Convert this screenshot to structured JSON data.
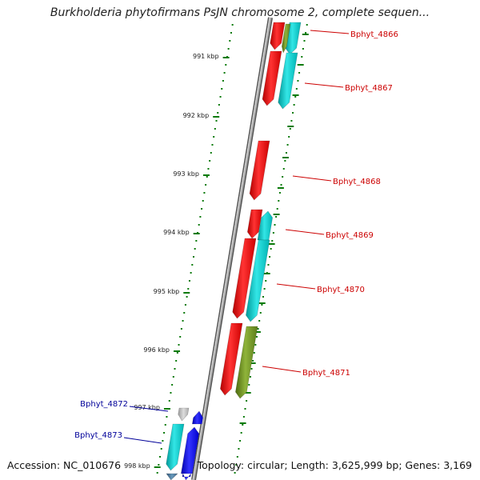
{
  "title": "Burkholderia phytofirmans PsJN chromosome 2, complete sequen...",
  "footer": {
    "accession": "Accession: NC_010676",
    "topology": "Topology: circular; Length: 3,625,999 bp; Genes: 3,169"
  },
  "ticks": [
    "991 kbp",
    "992 kbp",
    "993 kbp",
    "994 kbp",
    "995 kbp",
    "996 kbp",
    "997 kbp",
    "998 kbp"
  ],
  "genes_right": [
    "Bphyt_4866",
    "Bphyt_4867",
    "Bphyt_4868",
    "Bphyt_4869",
    "Bphyt_4870",
    "Bphyt_4871"
  ],
  "genes_left": [
    "Bphyt_4872",
    "Bphyt_4873"
  ],
  "colors": {
    "forward_strand": "#ff0000",
    "forward_feature": "#00cccc",
    "reverse_strand": "#0000ff",
    "olive_feature": "#6b8e23",
    "backbone": "#888888",
    "ticks": "#006400",
    "right_labels": "#cc0000",
    "left_labels": "#000099"
  }
}
